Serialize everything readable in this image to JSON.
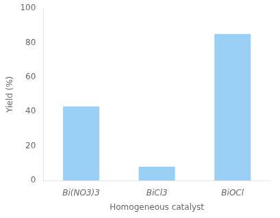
{
  "chart_data": {
    "type": "bar",
    "categories": [
      "Bi(NO3)3",
      "BiCl3",
      "BiOCl"
    ],
    "values": [
      43,
      8,
      85
    ],
    "xlabel": "Homogeneous catalyst",
    "ylabel": "Yield (%)",
    "ylim": [
      0,
      100
    ],
    "yticks": [
      0,
      20,
      40,
      60,
      80,
      100
    ],
    "grid": false
  }
}
